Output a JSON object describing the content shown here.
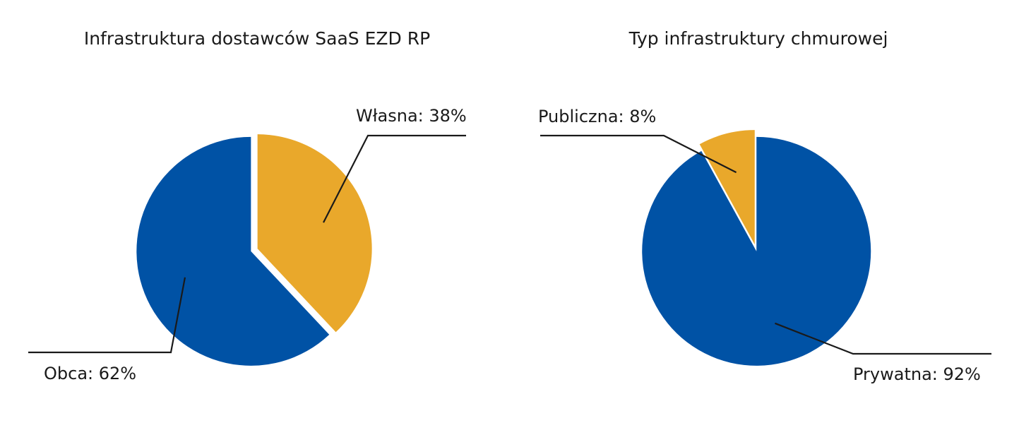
{
  "chart_data": [
    {
      "type": "pie",
      "title": "Infrastruktura dostawców SaaS EZD RP",
      "slices": [
        {
          "label": "Własna",
          "value": 38,
          "display": "Własna: 38%",
          "color": "#E9A82B"
        },
        {
          "label": "Obca",
          "value": 62,
          "display": "Obca: 62%",
          "color": "#0052A5"
        }
      ]
    },
    {
      "type": "pie",
      "title": "Typ infrastruktury chmurowej",
      "slices": [
        {
          "label": "Prywatna",
          "value": 92,
          "display": "Prywatna: 92%",
          "color": "#0052A5"
        },
        {
          "label": "Publiczna",
          "value": 8,
          "display": "Publiczna: 8%",
          "color": "#E9A82B"
        }
      ]
    }
  ]
}
